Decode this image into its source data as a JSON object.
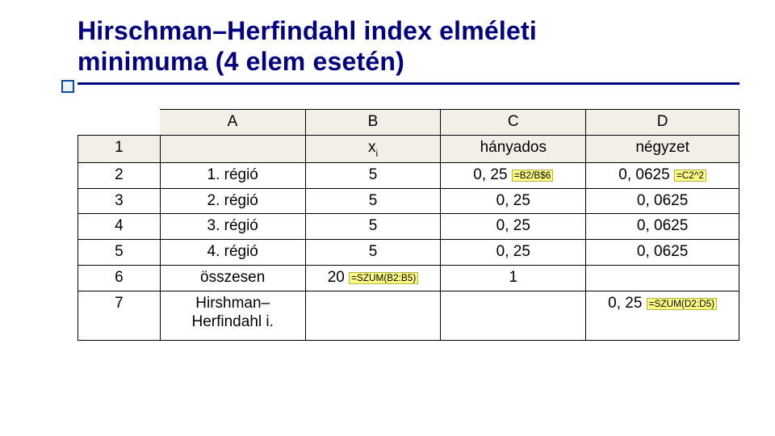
{
  "title_line1": "Hirschman–Herfindahl index elméleti",
  "title_line2": "minimuma (4 elem esetén)",
  "colors": {
    "title": "#000080",
    "rule": "#000080",
    "header_bg": "#f2efe6",
    "accent_border": "#0b4a9e",
    "accent_fill": "#eaf2fb",
    "formula_bg": "#ffff80",
    "formula_border": "#b2b24d",
    "cell_border": "#000000",
    "background": "#ffffff"
  },
  "table": {
    "columns": {
      "row": "",
      "A": "A",
      "B": "B",
      "C": "C",
      "D": "D"
    },
    "row1": {
      "num": "1",
      "A": "",
      "B_main": "x",
      "B_sub": "i",
      "C": "hányados",
      "D": "négyzet"
    },
    "row2": {
      "num": "2",
      "A": "1. régió",
      "B": "5",
      "C_val": "0, 25 ",
      "C_formula": "=B2/B$6",
      "D_val": "0, 0625 ",
      "D_formula": "=C2^2"
    },
    "row3": {
      "num": "3",
      "A": "2. régió",
      "B": "5",
      "C": "0, 25",
      "D": "0, 0625"
    },
    "row4": {
      "num": "4",
      "A": "3. régió",
      "B": "5",
      "C": "0, 25",
      "D": "0, 0625"
    },
    "row5": {
      "num": "5",
      "A": "4. régió",
      "B": "5",
      "C": "0, 25",
      "D": "0, 0625"
    },
    "row6": {
      "num": "6",
      "A": "összesen",
      "B_val": "20 ",
      "B_formula": "=SZUM(B2:B5)",
      "C": "1",
      "D": ""
    },
    "row7": {
      "num": "7",
      "A_l1": "Hirshman–",
      "A_l2": "Herfindahl i.",
      "B": "",
      "C": "",
      "D_val": "0, 25 ",
      "D_formula": "=SZUM(D2:D5)"
    }
  }
}
